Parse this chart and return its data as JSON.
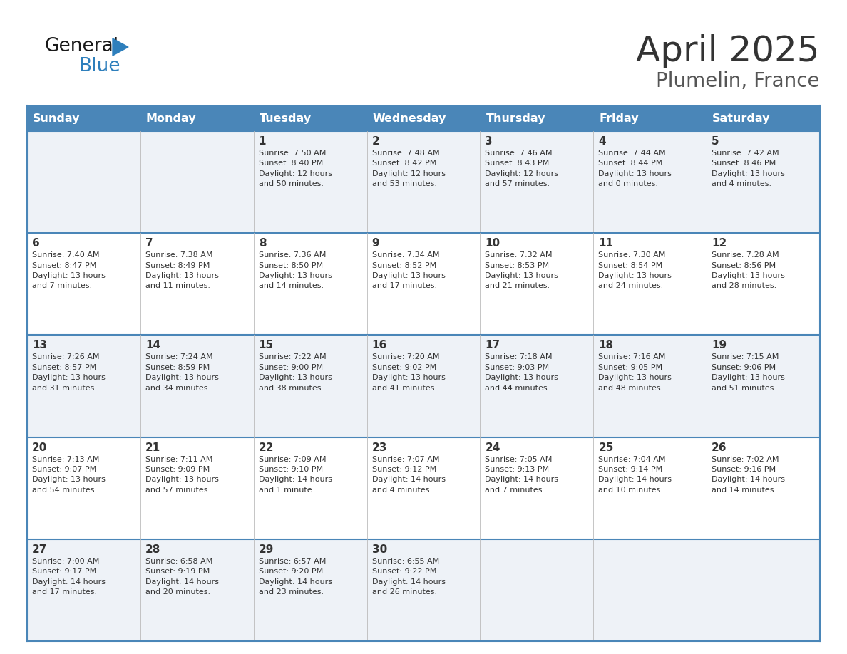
{
  "title": "April 2025",
  "subtitle": "Plumelin, France",
  "header_color": "#4a86b8",
  "header_text_color": "#ffffff",
  "days_of_week": [
    "Sunday",
    "Monday",
    "Tuesday",
    "Wednesday",
    "Thursday",
    "Friday",
    "Saturday"
  ],
  "row_bg_odd": "#eef2f7",
  "row_bg_even": "#ffffff",
  "border_color": "#4a86b8",
  "text_color": "#333333",
  "logo_general_color": "#1a1a1a",
  "logo_blue_color": "#2e7fbc",
  "weeks": [
    [
      {
        "day": null,
        "info": null
      },
      {
        "day": null,
        "info": null
      },
      {
        "day": "1",
        "info": "Sunrise: 7:50 AM\nSunset: 8:40 PM\nDaylight: 12 hours\nand 50 minutes."
      },
      {
        "day": "2",
        "info": "Sunrise: 7:48 AM\nSunset: 8:42 PM\nDaylight: 12 hours\nand 53 minutes."
      },
      {
        "day": "3",
        "info": "Sunrise: 7:46 AM\nSunset: 8:43 PM\nDaylight: 12 hours\nand 57 minutes."
      },
      {
        "day": "4",
        "info": "Sunrise: 7:44 AM\nSunset: 8:44 PM\nDaylight: 13 hours\nand 0 minutes."
      },
      {
        "day": "5",
        "info": "Sunrise: 7:42 AM\nSunset: 8:46 PM\nDaylight: 13 hours\nand 4 minutes."
      }
    ],
    [
      {
        "day": "6",
        "info": "Sunrise: 7:40 AM\nSunset: 8:47 PM\nDaylight: 13 hours\nand 7 minutes."
      },
      {
        "day": "7",
        "info": "Sunrise: 7:38 AM\nSunset: 8:49 PM\nDaylight: 13 hours\nand 11 minutes."
      },
      {
        "day": "8",
        "info": "Sunrise: 7:36 AM\nSunset: 8:50 PM\nDaylight: 13 hours\nand 14 minutes."
      },
      {
        "day": "9",
        "info": "Sunrise: 7:34 AM\nSunset: 8:52 PM\nDaylight: 13 hours\nand 17 minutes."
      },
      {
        "day": "10",
        "info": "Sunrise: 7:32 AM\nSunset: 8:53 PM\nDaylight: 13 hours\nand 21 minutes."
      },
      {
        "day": "11",
        "info": "Sunrise: 7:30 AM\nSunset: 8:54 PM\nDaylight: 13 hours\nand 24 minutes."
      },
      {
        "day": "12",
        "info": "Sunrise: 7:28 AM\nSunset: 8:56 PM\nDaylight: 13 hours\nand 28 minutes."
      }
    ],
    [
      {
        "day": "13",
        "info": "Sunrise: 7:26 AM\nSunset: 8:57 PM\nDaylight: 13 hours\nand 31 minutes."
      },
      {
        "day": "14",
        "info": "Sunrise: 7:24 AM\nSunset: 8:59 PM\nDaylight: 13 hours\nand 34 minutes."
      },
      {
        "day": "15",
        "info": "Sunrise: 7:22 AM\nSunset: 9:00 PM\nDaylight: 13 hours\nand 38 minutes."
      },
      {
        "day": "16",
        "info": "Sunrise: 7:20 AM\nSunset: 9:02 PM\nDaylight: 13 hours\nand 41 minutes."
      },
      {
        "day": "17",
        "info": "Sunrise: 7:18 AM\nSunset: 9:03 PM\nDaylight: 13 hours\nand 44 minutes."
      },
      {
        "day": "18",
        "info": "Sunrise: 7:16 AM\nSunset: 9:05 PM\nDaylight: 13 hours\nand 48 minutes."
      },
      {
        "day": "19",
        "info": "Sunrise: 7:15 AM\nSunset: 9:06 PM\nDaylight: 13 hours\nand 51 minutes."
      }
    ],
    [
      {
        "day": "20",
        "info": "Sunrise: 7:13 AM\nSunset: 9:07 PM\nDaylight: 13 hours\nand 54 minutes."
      },
      {
        "day": "21",
        "info": "Sunrise: 7:11 AM\nSunset: 9:09 PM\nDaylight: 13 hours\nand 57 minutes."
      },
      {
        "day": "22",
        "info": "Sunrise: 7:09 AM\nSunset: 9:10 PM\nDaylight: 14 hours\nand 1 minute."
      },
      {
        "day": "23",
        "info": "Sunrise: 7:07 AM\nSunset: 9:12 PM\nDaylight: 14 hours\nand 4 minutes."
      },
      {
        "day": "24",
        "info": "Sunrise: 7:05 AM\nSunset: 9:13 PM\nDaylight: 14 hours\nand 7 minutes."
      },
      {
        "day": "25",
        "info": "Sunrise: 7:04 AM\nSunset: 9:14 PM\nDaylight: 14 hours\nand 10 minutes."
      },
      {
        "day": "26",
        "info": "Sunrise: 7:02 AM\nSunset: 9:16 PM\nDaylight: 14 hours\nand 14 minutes."
      }
    ],
    [
      {
        "day": "27",
        "info": "Sunrise: 7:00 AM\nSunset: 9:17 PM\nDaylight: 14 hours\nand 17 minutes."
      },
      {
        "day": "28",
        "info": "Sunrise: 6:58 AM\nSunset: 9:19 PM\nDaylight: 14 hours\nand 20 minutes."
      },
      {
        "day": "29",
        "info": "Sunrise: 6:57 AM\nSunset: 9:20 PM\nDaylight: 14 hours\nand 23 minutes."
      },
      {
        "day": "30",
        "info": "Sunrise: 6:55 AM\nSunset: 9:22 PM\nDaylight: 14 hours\nand 26 minutes."
      },
      {
        "day": null,
        "info": null
      },
      {
        "day": null,
        "info": null
      },
      {
        "day": null,
        "info": null
      }
    ]
  ]
}
